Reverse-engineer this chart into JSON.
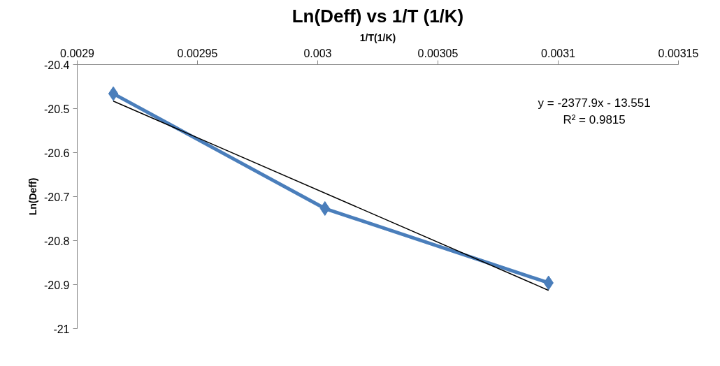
{
  "chart_data": {
    "type": "line",
    "title": "Ln(Deff) vs 1/T (1/K)",
    "xlabel": "1/T(1/K)",
    "ylabel": "Ln(Deff)",
    "xlim": [
      0.0029,
      0.00315
    ],
    "xticks": [
      0.0029,
      0.00295,
      0.003,
      0.00305,
      0.0031,
      0.00315
    ],
    "ylim": [
      -21,
      -20.4
    ],
    "yticks": [
      -21,
      -20.9,
      -20.8,
      -20.7,
      -20.6,
      -20.5,
      -20.4
    ],
    "grid": false,
    "marker": "diamond",
    "line_style": "solid",
    "series": [
      {
        "color": "#4a7ebb",
        "x": [
          0.002915,
          0.003003,
          0.003096
        ],
        "values": [
          -20.466,
          -20.727,
          -20.896
        ]
      },
      {
        "type": "line",
        "color": "#000000",
        "marker": "none",
        "x": [
          0.002915,
          0.003096
        ],
        "values": [
          -20.483,
          -20.913
        ]
      }
    ],
    "annotations": [
      "y = -2377.9x - 13.551",
      "R² = 0.9815"
    ]
  }
}
